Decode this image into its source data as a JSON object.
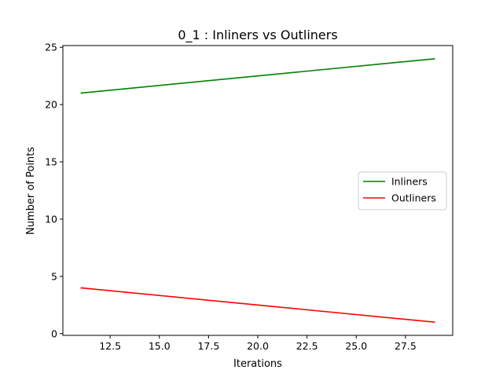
{
  "chart_data": {
    "type": "line",
    "title": "0_1 : Inliners vs Outliners",
    "xlabel": "Iterations",
    "ylabel": "Number of Points",
    "xlim": [
      10.1,
      29.9
    ],
    "ylim": [
      -0.15,
      25.15
    ],
    "grid": false,
    "legend_position": "center-right",
    "x_ticks": [
      12.5,
      15.0,
      17.5,
      20.0,
      22.5,
      25.0,
      27.5
    ],
    "x_tick_labels": [
      "12.5",
      "15.0",
      "17.5",
      "20.0",
      "22.5",
      "25.0",
      "27.5"
    ],
    "y_ticks": [
      0,
      5,
      10,
      15,
      20,
      25
    ],
    "y_tick_labels": [
      "0",
      "5",
      "10",
      "15",
      "20",
      "25"
    ],
    "series": [
      {
        "name": "Inliners",
        "color": "#008000",
        "x": [
          11,
          29
        ],
        "y": [
          21,
          24
        ]
      },
      {
        "name": "Outliners",
        "color": "#ff0000",
        "x": [
          11,
          29
        ],
        "y": [
          4,
          1
        ]
      }
    ]
  }
}
